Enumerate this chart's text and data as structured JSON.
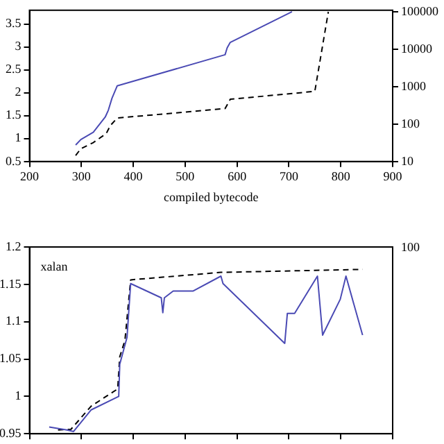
{
  "chart_data": [
    {
      "type": "line",
      "xlabel": "compiled bytecode",
      "xlim": [
        200,
        900
      ],
      "xticks": [
        200,
        300,
        400,
        500,
        600,
        700,
        800,
        900
      ],
      "ylim": [
        0.5,
        3.8
      ],
      "yticks": [
        0.5,
        1,
        1.5,
        2,
        2.5,
        3,
        3.5
      ],
      "y2lim": [
        10,
        110000
      ],
      "y2ticks": [
        10,
        100,
        1000,
        10000,
        100000
      ],
      "log": "y2",
      "grid": false,
      "legend": false,
      "marker": "none",
      "series": [
        {
          "color": "#4a4ab4",
          "line_style": "solid",
          "x": [
            289,
            299,
            323,
            346,
            352,
            359,
            369,
            577,
            581,
            587,
            706
          ],
          "values": [
            0.86,
            0.98,
            1.14,
            1.47,
            1.62,
            1.88,
            2.15,
            2.83,
            2.98,
            3.1,
            3.77
          ]
        },
        {
          "color": "#000000",
          "line_style": "dashed",
          "axis": "y2",
          "x": [
            289,
            299,
            323,
            348,
            356,
            369,
            577,
            587,
            750,
            776
          ],
          "values": [
            14.5,
            22,
            32,
            56,
            92,
            145,
            260,
            460,
            750,
            100000
          ]
        }
      ]
    },
    {
      "type": "line",
      "annotations": [
        "xalan",
        "100"
      ],
      "xlim": [
        200,
        900
      ],
      "xticks": [
        {
          "value": 200,
          "label": null
        },
        {
          "value": 300,
          "label": null
        },
        {
          "value": 400,
          "label": null
        },
        {
          "value": 500,
          "label": null
        },
        {
          "value": 600,
          "label": null
        },
        {
          "value": 700,
          "label": null
        },
        {
          "value": 800,
          "label": null
        },
        {
          "value": 900,
          "label": null
        }
      ],
      "tick_labels": "y",
      "ylim": [
        0.95,
        1.2
      ],
      "yticks": [
        0.95,
        1,
        1.05,
        1.1,
        1.15,
        1.2
      ],
      "grid": false,
      "legend": false,
      "marker": "none",
      "series": [
        {
          "color": "#4a4ab4",
          "line_style": "solid",
          "x": [
            238,
            272,
            285,
            319,
            372,
            374,
            388,
            395,
            454,
            457,
            460,
            477,
            515,
            569,
            573,
            692,
            697,
            711,
            755,
            765,
            799,
            810,
            842
          ],
          "values": [
            0.959,
            0.955,
            0.953,
            0.982,
            1.0,
            1.043,
            1.079,
            1.151,
            1.132,
            1.112,
            1.132,
            1.141,
            1.141,
            1.161,
            1.151,
            1.071,
            1.111,
            1.111,
            1.161,
            1.082,
            1.13,
            1.161,
            1.082
          ]
        },
        {
          "color": "#000000",
          "line_style": "dashed",
          "x": [
            255,
            280,
            319,
            370,
            374,
            384,
            395,
            569,
            842
          ],
          "values": [
            0.955,
            0.956,
            0.987,
            1.01,
            1.053,
            1.075,
            1.156,
            1.166,
            1.17
          ]
        }
      ]
    }
  ]
}
